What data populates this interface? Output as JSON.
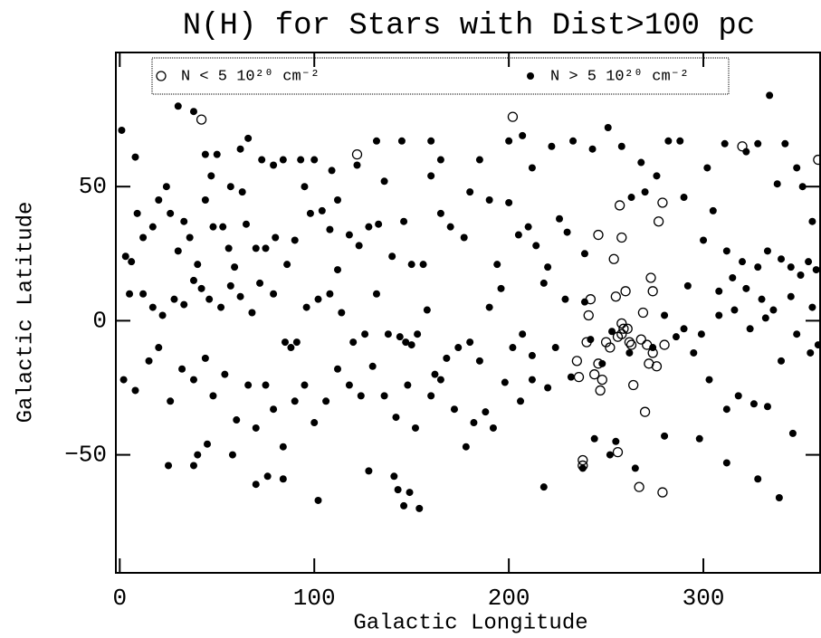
{
  "chart_data": {
    "type": "scatter",
    "title": "N(H) for Stars with Dist>100 pc",
    "x_label": "Galactic Longitude",
    "y_label": "Galactic Latitude",
    "xlim": [
      -2,
      360
    ],
    "ylim": [
      -94,
      100
    ],
    "xticks": [
      0,
      100,
      200,
      300
    ],
    "yticks": [
      {
        "value": -50,
        "label": "−50"
      },
      0,
      50
    ],
    "legend": "top",
    "series": [
      {
        "name": "N < 5 10²⁰ cm⁻²",
        "marker": "open",
        "color": "#000000",
        "x": [
          42,
          122,
          202,
          320,
          359,
          246,
          258,
          257,
          279,
          277,
          254,
          242,
          241,
          255,
          260,
          273,
          274,
          269,
          258,
          259,
          256,
          262,
          268,
          263,
          250,
          240,
          235,
          236,
          246,
          244,
          248,
          247,
          271,
          274,
          272,
          276,
          280,
          270,
          264,
          256,
          238,
          238,
          267,
          279,
          258,
          261,
          252
        ],
        "y": [
          75,
          62,
          76,
          65,
          60,
          32,
          31,
          43,
          44,
          37,
          23,
          8,
          2,
          9,
          11,
          16,
          11,
          3,
          -1,
          -3,
          -6,
          -8,
          -7,
          -9,
          -8,
          -8,
          -15,
          -21,
          -16,
          -20,
          -22,
          -26,
          -9,
          -12,
          -16,
          -17,
          -9,
          -34,
          -24,
          -49,
          -52,
          -54,
          -62,
          -64,
          -5,
          -3,
          -10
        ]
      },
      {
        "name": "N > 5 10²⁰ cm⁻²",
        "marker": "filled",
        "color": "#000000",
        "x": [
          1,
          8,
          30,
          38,
          50,
          44,
          47,
          57,
          63,
          62,
          66,
          73,
          79,
          84,
          93,
          100,
          109,
          112,
          122,
          132,
          136,
          145,
          160,
          165,
          185,
          200,
          207,
          212,
          222,
          233,
          243,
          251,
          258,
          268,
          282,
          288,
          302,
          311,
          322,
          328,
          338,
          342,
          334,
          348,
          351,
          356,
          3,
          6,
          9,
          12,
          17,
          20,
          24,
          26,
          30,
          33,
          36,
          40,
          44,
          48,
          53,
          56,
          59,
          65,
          70,
          75,
          80,
          86,
          90,
          95,
          98,
          104,
          108,
          112,
          118,
          123,
          128,
          133,
          140,
          146,
          150,
          156,
          160,
          165,
          170,
          177,
          180,
          190,
          194,
          200,
          205,
          210,
          214,
          220,
          226,
          230,
          239,
          263,
          270,
          276,
          290,
          300,
          305,
          312,
          320,
          328,
          333,
          340,
          345,
          350,
          354,
          358,
          292,
          308,
          315,
          322,
          330,
          336,
          345,
          356,
          5,
          12,
          17,
          22,
          28,
          33,
          38,
          42,
          46,
          52,
          57,
          62,
          68,
          72,
          79,
          85,
          88,
          91,
          96,
          102,
          108,
          114,
          120,
          126,
          132,
          138,
          144,
          147,
          150,
          153,
          158,
          162,
          168,
          174,
          180,
          185,
          190,
          196,
          202,
          207,
          212,
          218,
          224,
          229,
          239,
          242,
          248,
          253,
          262,
          274,
          280,
          286,
          290,
          295,
          299,
          303,
          308,
          316,
          324,
          332,
          340,
          348,
          355,
          359,
          2,
          8,
          15,
          20,
          26,
          32,
          38,
          44,
          48,
          54,
          60,
          66,
          70,
          75,
          79,
          84,
          90,
          95,
          100,
          106,
          112,
          118,
          124,
          130,
          136,
          142,
          148,
          152,
          160,
          165,
          172,
          178,
          182,
          188,
          192,
          198,
          206,
          212,
          220,
          232,
          244,
          255,
          265,
          280,
          298,
          312,
          318,
          326,
          333,
          346,
          25,
          38,
          40,
          45,
          58,
          70,
          76,
          84,
          102,
          128,
          141,
          143,
          146,
          149,
          154,
          218,
          238,
          252,
          312,
          328,
          339
        ],
        "y": [
          71,
          61,
          80,
          78,
          62,
          62,
          54,
          50,
          48,
          64,
          68,
          60,
          58,
          60,
          60,
          60,
          56,
          45,
          58,
          67,
          52,
          67,
          67,
          60,
          60,
          67,
          69,
          57,
          65,
          67,
          64,
          72,
          65,
          59,
          67,
          67,
          57,
          66,
          63,
          66,
          51,
          66,
          84,
          57,
          50,
          37,
          24,
          22,
          40,
          31,
          35,
          45,
          50,
          40,
          26,
          37,
          31,
          21,
          45,
          35,
          35,
          27,
          20,
          36,
          27,
          27,
          31,
          21,
          30,
          50,
          40,
          41,
          34,
          19,
          32,
          28,
          35,
          36,
          24,
          37,
          21,
          21,
          54,
          40,
          35,
          31,
          48,
          45,
          21,
          44,
          32,
          35,
          28,
          20,
          38,
          33,
          25,
          46,
          48,
          54,
          46,
          30,
          41,
          26,
          22,
          20,
          26,
          23,
          20,
          17,
          22,
          19,
          13,
          11,
          16,
          12,
          8,
          4,
          9,
          5,
          10,
          10,
          5,
          2,
          8,
          6,
          15,
          12,
          8,
          5,
          13,
          9,
          3,
          14,
          10,
          -8,
          -10,
          -8,
          5,
          8,
          10,
          3,
          -8,
          -5,
          10,
          -5,
          -6,
          -8,
          -9,
          -5,
          4,
          -20,
          -14,
          -10,
          -8,
          -15,
          5,
          12,
          -10,
          -5,
          -13,
          14,
          -10,
          8,
          7,
          -7,
          -16,
          -4,
          -12,
          -10,
          2,
          -6,
          -3,
          -12,
          -5,
          -22,
          2,
          4,
          -3,
          1,
          -15,
          -5,
          -12,
          -9,
          -22,
          -26,
          -15,
          -10,
          -30,
          -18,
          -22,
          -14,
          -28,
          -20,
          -37,
          -24,
          -40,
          -24,
          -33,
          -47,
          -30,
          -24,
          -38,
          -30,
          -18,
          -24,
          -28,
          -17,
          -28,
          -36,
          -24,
          -40,
          -28,
          -22,
          -33,
          -47,
          -38,
          -34,
          -40,
          -23,
          -30,
          -22,
          -25,
          -21,
          -44,
          -45,
          -55,
          -43,
          -44,
          -33,
          -28,
          -31,
          -32,
          -42,
          -54,
          -54,
          -50,
          -46,
          -50,
          -61,
          -58,
          -59,
          -67,
          -56,
          -58,
          -63,
          -69,
          -64,
          -70,
          -62,
          -55,
          -50,
          -53,
          -59,
          -66
        ]
      }
    ]
  }
}
